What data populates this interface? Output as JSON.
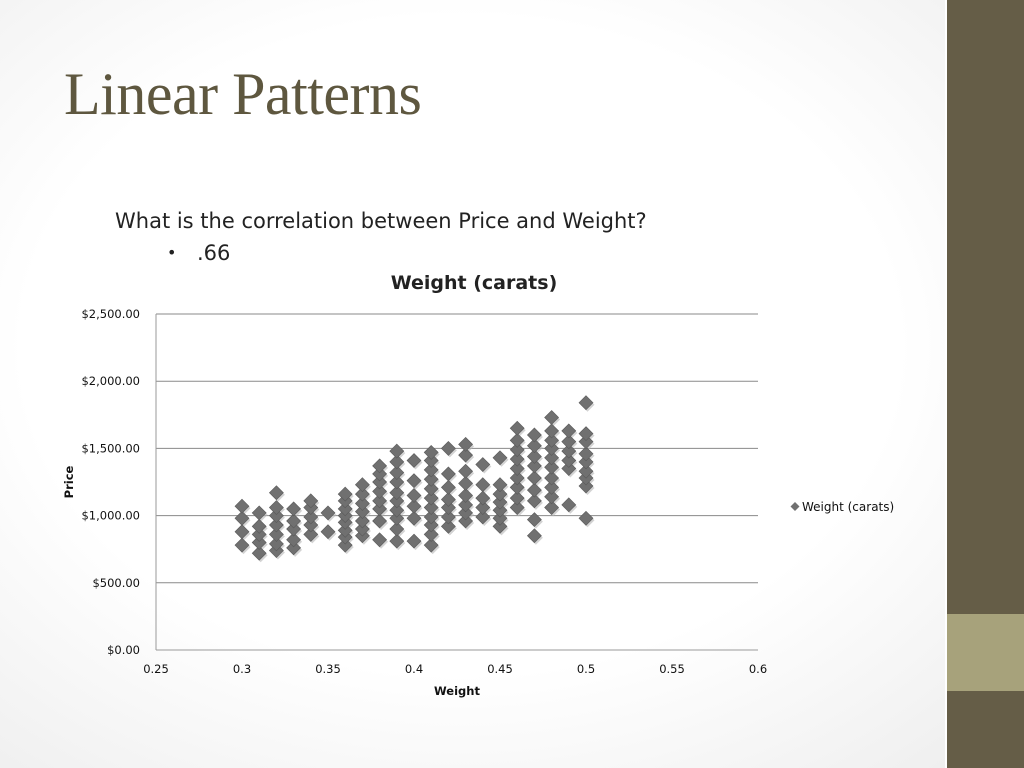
{
  "slide": {
    "title": "Linear Patterns",
    "question": "What is the correlation between Price and Weight?",
    "answer": ".66",
    "colors": {
      "title": "#5e573f",
      "sidebar": "#655d47",
      "sidebar_accent": "#a7a27b",
      "marker": "#707070"
    }
  },
  "chart_data": {
    "type": "scatter",
    "title": "Weight (carats)",
    "xlabel": "Weight",
    "ylabel": "Price",
    "xlim": [
      0.25,
      0.6
    ],
    "ylim": [
      0,
      2500
    ],
    "x_ticks": [
      "0.25",
      "0.3",
      "0.35",
      "0.4",
      "0.45",
      "0.5",
      "0.55",
      "0.6"
    ],
    "y_ticks": [
      "$0.00",
      "$500.00",
      "$1,000.00",
      "$1,500.00",
      "$2,000.00",
      "$2,500.00"
    ],
    "grid": "horizontal",
    "legend_position": "right",
    "series": [
      {
        "name": "Weight (carats)",
        "marker": "diamond",
        "points": [
          [
            0.3,
            780
          ],
          [
            0.3,
            880
          ],
          [
            0.3,
            980
          ],
          [
            0.3,
            1070
          ],
          [
            0.31,
            720
          ],
          [
            0.31,
            800
          ],
          [
            0.31,
            860
          ],
          [
            0.31,
            920
          ],
          [
            0.31,
            1020
          ],
          [
            0.32,
            740
          ],
          [
            0.32,
            790
          ],
          [
            0.32,
            860
          ],
          [
            0.32,
            930
          ],
          [
            0.32,
            1000
          ],
          [
            0.32,
            1060
          ],
          [
            0.32,
            1170
          ],
          [
            0.33,
            760
          ],
          [
            0.33,
            820
          ],
          [
            0.33,
            900
          ],
          [
            0.33,
            960
          ],
          [
            0.33,
            1050
          ],
          [
            0.34,
            860
          ],
          [
            0.34,
            930
          ],
          [
            0.34,
            990
          ],
          [
            0.34,
            1060
          ],
          [
            0.34,
            1110
          ],
          [
            0.35,
            880
          ],
          [
            0.35,
            1020
          ],
          [
            0.36,
            780
          ],
          [
            0.36,
            840
          ],
          [
            0.36,
            890
          ],
          [
            0.36,
            950
          ],
          [
            0.36,
            1000
          ],
          [
            0.36,
            1050
          ],
          [
            0.36,
            1110
          ],
          [
            0.36,
            1160
          ],
          [
            0.37,
            850
          ],
          [
            0.37,
            900
          ],
          [
            0.37,
            960
          ],
          [
            0.37,
            1030
          ],
          [
            0.37,
            1090
          ],
          [
            0.37,
            1160
          ],
          [
            0.37,
            1230
          ],
          [
            0.38,
            820
          ],
          [
            0.38,
            960
          ],
          [
            0.38,
            1050
          ],
          [
            0.38,
            1110
          ],
          [
            0.38,
            1180
          ],
          [
            0.38,
            1250
          ],
          [
            0.38,
            1310
          ],
          [
            0.38,
            1370
          ],
          [
            0.39,
            810
          ],
          [
            0.39,
            900
          ],
          [
            0.39,
            980
          ],
          [
            0.39,
            1040
          ],
          [
            0.39,
            1110
          ],
          [
            0.39,
            1170
          ],
          [
            0.39,
            1250
          ],
          [
            0.39,
            1320
          ],
          [
            0.39,
            1400
          ],
          [
            0.39,
            1480
          ],
          [
            0.4,
            810
          ],
          [
            0.4,
            980
          ],
          [
            0.4,
            1070
          ],
          [
            0.4,
            1150
          ],
          [
            0.4,
            1260
          ],
          [
            0.4,
            1410
          ],
          [
            0.41,
            780
          ],
          [
            0.41,
            860
          ],
          [
            0.41,
            930
          ],
          [
            0.41,
            990
          ],
          [
            0.41,
            1060
          ],
          [
            0.41,
            1130
          ],
          [
            0.41,
            1200
          ],
          [
            0.41,
            1270
          ],
          [
            0.41,
            1340
          ],
          [
            0.41,
            1410
          ],
          [
            0.41,
            1470
          ],
          [
            0.42,
            920
          ],
          [
            0.42,
            990
          ],
          [
            0.42,
            1060
          ],
          [
            0.42,
            1120
          ],
          [
            0.42,
            1210
          ],
          [
            0.42,
            1310
          ],
          [
            0.42,
            1500
          ],
          [
            0.43,
            960
          ],
          [
            0.43,
            1020
          ],
          [
            0.43,
            1080
          ],
          [
            0.43,
            1150
          ],
          [
            0.43,
            1240
          ],
          [
            0.43,
            1330
          ],
          [
            0.43,
            1450
          ],
          [
            0.43,
            1530
          ],
          [
            0.44,
            990
          ],
          [
            0.44,
            1060
          ],
          [
            0.44,
            1130
          ],
          [
            0.44,
            1230
          ],
          [
            0.44,
            1380
          ],
          [
            0.45,
            920
          ],
          [
            0.45,
            980
          ],
          [
            0.45,
            1040
          ],
          [
            0.45,
            1100
          ],
          [
            0.45,
            1160
          ],
          [
            0.45,
            1230
          ],
          [
            0.45,
            1430
          ],
          [
            0.46,
            1060
          ],
          [
            0.46,
            1130
          ],
          [
            0.46,
            1210
          ],
          [
            0.46,
            1280
          ],
          [
            0.46,
            1350
          ],
          [
            0.46,
            1420
          ],
          [
            0.46,
            1490
          ],
          [
            0.46,
            1560
          ],
          [
            0.46,
            1650
          ],
          [
            0.47,
            850
          ],
          [
            0.47,
            970
          ],
          [
            0.47,
            1110
          ],
          [
            0.47,
            1190
          ],
          [
            0.47,
            1280
          ],
          [
            0.47,
            1370
          ],
          [
            0.47,
            1440
          ],
          [
            0.47,
            1520
          ],
          [
            0.47,
            1600
          ],
          [
            0.48,
            1060
          ],
          [
            0.48,
            1140
          ],
          [
            0.48,
            1210
          ],
          [
            0.48,
            1280
          ],
          [
            0.48,
            1360
          ],
          [
            0.48,
            1430
          ],
          [
            0.48,
            1500
          ],
          [
            0.48,
            1560
          ],
          [
            0.48,
            1630
          ],
          [
            0.48,
            1730
          ],
          [
            0.49,
            1080
          ],
          [
            0.49,
            1350
          ],
          [
            0.49,
            1410
          ],
          [
            0.49,
            1480
          ],
          [
            0.49,
            1550
          ],
          [
            0.49,
            1630
          ],
          [
            0.5,
            980
          ],
          [
            0.5,
            1220
          ],
          [
            0.5,
            1280
          ],
          [
            0.5,
            1330
          ],
          [
            0.5,
            1400
          ],
          [
            0.5,
            1460
          ],
          [
            0.5,
            1550
          ],
          [
            0.5,
            1610
          ],
          [
            0.5,
            1840
          ]
        ]
      }
    ]
  }
}
